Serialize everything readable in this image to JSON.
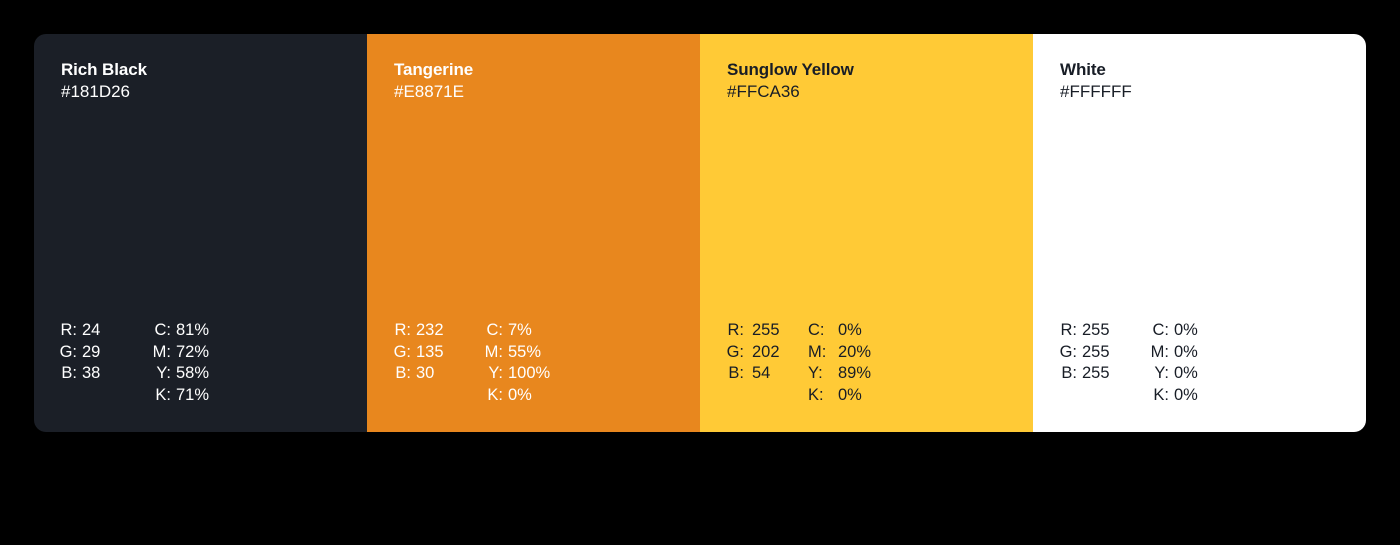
{
  "swatches": [
    {
      "name": "Rich Black",
      "hex": "#181D26",
      "background": "#1B1F27",
      "text_color": "#FFFFFF",
      "rgb": [
        {
          "label": "R:",
          "value": "24"
        },
        {
          "label": "G:",
          "value": "29"
        },
        {
          "label": "B:",
          "value": "38"
        }
      ],
      "cmyk": [
        {
          "label": "C:",
          "value": "81%"
        },
        {
          "label": "M:",
          "value": "72%"
        },
        {
          "label": "Y:",
          "value": "58%"
        },
        {
          "label": "K:",
          "value": "71%"
        }
      ]
    },
    {
      "name": "Tangerine",
      "hex": "#E8871E",
      "background": "#E8871E",
      "text_color": "#FFFFFF",
      "rgb": [
        {
          "label": "R:",
          "value": "232"
        },
        {
          "label": "G:",
          "value": "135"
        },
        {
          "label": "B:",
          "value": "30"
        }
      ],
      "cmyk": [
        {
          "label": "C:",
          "value": "7%"
        },
        {
          "label": "M:",
          "value": "55%"
        },
        {
          "label": "Y:",
          "value": "100%"
        },
        {
          "label": "K:",
          "value": "0%"
        }
      ]
    },
    {
      "name": "Sunglow Yellow",
      "hex": "#FFCA36",
      "background": "#FFCA36",
      "text_color": "#181D26",
      "rgb": [
        {
          "label": "R:",
          "value": "255"
        },
        {
          "label": "G:",
          "value": "202"
        },
        {
          "label": "B:",
          "value": "54"
        }
      ],
      "cmyk": [
        {
          "label": "C:",
          "value": "0%"
        },
        {
          "label": "M:",
          "value": "20%"
        },
        {
          "label": "Y:",
          "value": "89%"
        },
        {
          "label": "K:",
          "value": "0%"
        }
      ]
    },
    {
      "name": "White",
      "hex": "#FFFFFF",
      "background": "#FFFFFF",
      "text_color": "#181D26",
      "rgb": [
        {
          "label": "R:",
          "value": "255"
        },
        {
          "label": "G:",
          "value": "255"
        },
        {
          "label": "B:",
          "value": "255"
        }
      ],
      "cmyk": [
        {
          "label": "C:",
          "value": "0%"
        },
        {
          "label": "M:",
          "value": "0%"
        },
        {
          "label": "Y:",
          "value": "0%"
        },
        {
          "label": "K:",
          "value": "0%"
        }
      ]
    }
  ]
}
